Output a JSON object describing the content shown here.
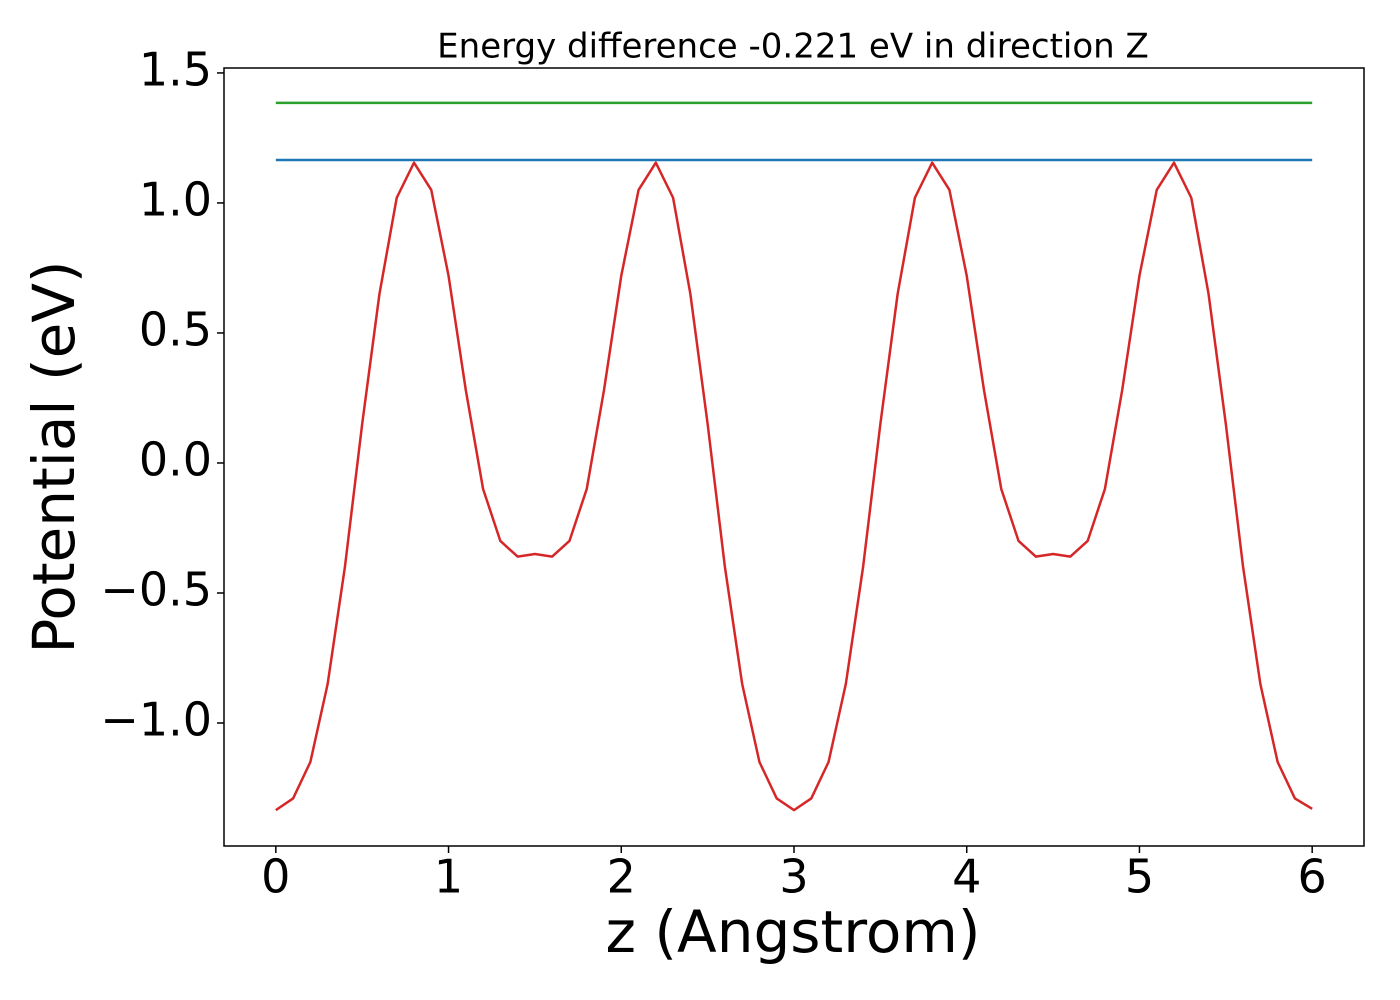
{
  "chart_data": {
    "type": "line",
    "title": "Energy difference -0.221 eV in direction Z",
    "x_label": "z (Angstrom)",
    "y_label": "Potential (eV)",
    "xlim": [
      -0.3,
      6.3
    ],
    "ylim": [
      -1.473,
      1.519
    ],
    "xticks": [
      0,
      1,
      2,
      3,
      4,
      5,
      6
    ],
    "yticks": [
      1.5,
      {
        "value": 1.0,
        "label": "1.0"
      },
      0.5,
      {
        "value": 0.0,
        "label": "0.0"
      },
      {
        "value": -0.5,
        "label": "−0.5"
      },
      {
        "value": -1.0,
        "label": "−1.0"
      }
    ],
    "grid": false,
    "series": [
      {
        "color": "#d62728",
        "x": [
          0,
          0.1,
          0.2,
          0.3,
          0.4,
          0.5,
          0.6,
          0.7,
          0.8,
          0.9,
          1.0,
          1.1,
          1.2,
          1.3,
          1.4,
          1.5,
          1.6,
          1.7,
          1.8,
          1.9,
          2.0,
          2.1,
          2.2,
          2.3,
          2.4,
          2.5,
          2.6,
          2.7,
          2.8,
          2.9,
          3.0,
          3.1,
          3.2,
          3.3,
          3.4,
          3.5,
          3.6,
          3.7,
          3.8,
          3.9,
          4.0,
          4.1,
          4.2,
          4.3,
          4.4,
          4.5,
          4.6,
          4.7,
          4.8,
          4.9,
          5.0,
          5.1,
          5.2,
          5.3,
          5.4,
          5.5,
          5.6,
          5.7,
          5.8,
          5.9,
          6.0
        ],
        "values": [
          -1.335,
          -1.29,
          -1.15,
          -0.85,
          -0.4,
          0.15,
          0.65,
          1.02,
          1.155,
          1.05,
          0.72,
          0.28,
          -0.1,
          -0.3,
          -0.36,
          -0.35,
          -0.36,
          -0.3,
          -0.1,
          0.28,
          0.72,
          1.05,
          1.155,
          1.02,
          0.65,
          0.15,
          -0.4,
          -0.85,
          -1.15,
          -1.29,
          -1.335,
          -1.29,
          -1.15,
          -0.85,
          -0.4,
          0.15,
          0.65,
          1.02,
          1.155,
          1.05,
          0.72,
          0.28,
          -0.1,
          -0.3,
          -0.36,
          -0.35,
          -0.36,
          -0.3,
          -0.1,
          0.28,
          0.72,
          1.05,
          1.155,
          1.02,
          0.65,
          0.15,
          -0.4,
          -0.85,
          -1.15,
          -1.29,
          -1.33
        ]
      },
      {
        "color": "#1f77b4",
        "x": [
          0,
          6
        ],
        "values": [
          1.165,
          1.165
        ]
      },
      {
        "color": "#2ca02c",
        "x": [
          0,
          6
        ],
        "values": [
          1.385,
          1.385
        ]
      }
    ]
  }
}
